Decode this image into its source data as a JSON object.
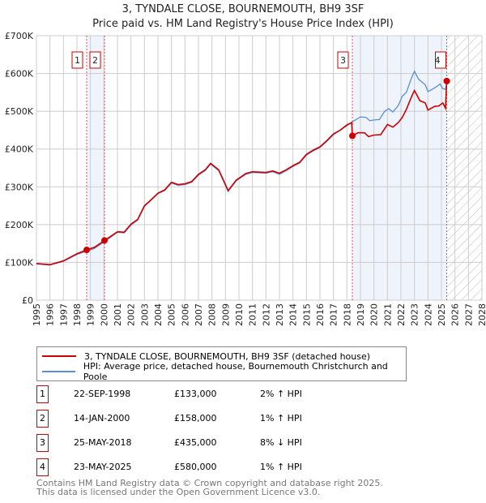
{
  "chart_data": {
    "type": "line",
    "title": "3, TYNDALE CLOSE, BOURNEMOUTH, BH9 3SF",
    "subtitle": "Price paid vs. HM Land Registry's House Price Index (HPI)",
    "xlim": [
      1995,
      2028
    ],
    "ylim": [
      0,
      700000
    ],
    "x_ticks": [
      "1995",
      "1996",
      "1997",
      "1998",
      "1999",
      "2000",
      "2001",
      "2002",
      "2003",
      "2004",
      "2005",
      "2006",
      "2007",
      "2008",
      "2009",
      "2010",
      "2011",
      "2012",
      "2013",
      "2014",
      "2015",
      "2016",
      "2017",
      "2018",
      "2019",
      "2020",
      "2021",
      "2022",
      "2023",
      "2024",
      "2025",
      "2026",
      "2027",
      "2028"
    ],
    "y_ticks": [
      {
        "v": 0,
        "label": "£0"
      },
      {
        "v": 100000,
        "label": "£100K"
      },
      {
        "v": 200000,
        "label": "£200K"
      },
      {
        "v": 300000,
        "label": "£300K"
      },
      {
        "v": 400000,
        "label": "£400K"
      },
      {
        "v": 500000,
        "label": "£500K"
      },
      {
        "v": 600000,
        "label": "£600K"
      },
      {
        "v": 700000,
        "label": "£700K"
      }
    ],
    "grid": true,
    "legend_position": "below",
    "series": [
      {
        "name": "3, TYNDALE CLOSE, BOURNEMOUTH, BH9 3SF (detached house)",
        "color": "#cc0000",
        "points": [
          [
            1995,
            97
          ],
          [
            1996,
            94
          ],
          [
            1997,
            104
          ],
          [
            1998,
            123
          ],
          [
            1998.72,
            133
          ],
          [
            1999.3,
            140
          ],
          [
            2000.04,
            158
          ],
          [
            2001,
            181
          ],
          [
            2001.5,
            180
          ],
          [
            2002,
            201
          ],
          [
            2002.5,
            214
          ],
          [
            2003,
            250
          ],
          [
            2003.5,
            266
          ],
          [
            2004,
            283
          ],
          [
            2004.5,
            292
          ],
          [
            2005,
            312
          ],
          [
            2005.5,
            306
          ],
          [
            2006,
            308
          ],
          [
            2006.5,
            314
          ],
          [
            2007,
            333
          ],
          [
            2007.5,
            345
          ],
          [
            2007.9,
            362
          ],
          [
            2008.5,
            345
          ],
          [
            2009.2,
            290
          ],
          [
            2009.8,
            318
          ],
          [
            2010.5,
            335
          ],
          [
            2011,
            340
          ],
          [
            2012,
            338
          ],
          [
            2012.5,
            342
          ],
          [
            2013,
            336
          ],
          [
            2013.5,
            345
          ],
          [
            2014,
            356
          ],
          [
            2014.5,
            365
          ],
          [
            2015,
            386
          ],
          [
            2015.5,
            397
          ],
          [
            2016,
            406
          ],
          [
            2016.5,
            422
          ],
          [
            2017,
            440
          ],
          [
            2017.5,
            450
          ],
          [
            2018,
            464
          ],
          [
            2018.35,
            470
          ],
          [
            2018.4,
            435
          ],
          [
            2018.8,
            443
          ],
          [
            2019.3,
            443
          ],
          [
            2019.6,
            433
          ],
          [
            2020,
            437
          ],
          [
            2020.5,
            438
          ],
          [
            2021,
            465
          ],
          [
            2021.4,
            458
          ],
          [
            2021.8,
            470
          ],
          [
            2022.1,
            484
          ],
          [
            2022.4,
            505
          ],
          [
            2022.8,
            540
          ],
          [
            2023,
            555
          ],
          [
            2023.4,
            528
          ],
          [
            2023.8,
            522
          ],
          [
            2024,
            503
          ],
          [
            2024.5,
            513
          ],
          [
            2024.8,
            514
          ],
          [
            2025.1,
            522
          ],
          [
            2025.3,
            508
          ],
          [
            2025.39,
            580
          ]
        ]
      },
      {
        "name": "HPI: Average price, detached house, Bournemouth Christchurch and Poole",
        "color": "#5b8fd4",
        "points": [
          [
            1995,
            96
          ],
          [
            1996,
            93
          ],
          [
            1997,
            103
          ],
          [
            1998,
            121
          ],
          [
            1998.72,
            130
          ],
          [
            1999.3,
            137
          ],
          [
            2000.04,
            155
          ],
          [
            2001,
            180
          ],
          [
            2001.5,
            178
          ],
          [
            2002,
            199
          ],
          [
            2002.5,
            212
          ],
          [
            2003,
            248
          ],
          [
            2003.5,
            265
          ],
          [
            2004,
            282
          ],
          [
            2004.5,
            290
          ],
          [
            2005,
            310
          ],
          [
            2005.5,
            304
          ],
          [
            2006,
            306
          ],
          [
            2006.5,
            312
          ],
          [
            2007,
            331
          ],
          [
            2007.5,
            343
          ],
          [
            2007.9,
            360
          ],
          [
            2008.5,
            343
          ],
          [
            2009.2,
            288
          ],
          [
            2009.8,
            316
          ],
          [
            2010.5,
            333
          ],
          [
            2011,
            338
          ],
          [
            2012,
            336
          ],
          [
            2012.5,
            340
          ],
          [
            2013,
            333
          ],
          [
            2013.5,
            343
          ],
          [
            2014,
            354
          ],
          [
            2014.5,
            363
          ],
          [
            2015,
            384
          ],
          [
            2015.5,
            395
          ],
          [
            2016,
            404
          ],
          [
            2016.5,
            420
          ],
          [
            2017,
            438
          ],
          [
            2017.5,
            450
          ],
          [
            2018,
            462
          ],
          [
            2018.4,
            472
          ],
          [
            2019,
            485
          ],
          [
            2019.4,
            484
          ],
          [
            2019.7,
            475
          ],
          [
            2020,
            477
          ],
          [
            2020.4,
            478
          ],
          [
            2020.8,
            500
          ],
          [
            2021.1,
            507
          ],
          [
            2021.4,
            498
          ],
          [
            2021.8,
            515
          ],
          [
            2022.1,
            540
          ],
          [
            2022.4,
            550
          ],
          [
            2022.8,
            590
          ],
          [
            2023,
            606
          ],
          [
            2023.3,
            585
          ],
          [
            2023.8,
            570
          ],
          [
            2024,
            552
          ],
          [
            2024.5,
            562
          ],
          [
            2024.9,
            572
          ],
          [
            2025.1,
            560
          ],
          [
            2025.3,
            558
          ],
          [
            2025.39,
            575
          ]
        ]
      }
    ],
    "value_unit": "thousand GBP",
    "shaded_ranges": [
      [
        1998.72,
        2000.04
      ],
      [
        2018.4,
        2025.39
      ]
    ],
    "hatched_range": [
      2025.39,
      2028
    ],
    "sales": [
      {
        "n": "1",
        "x": 1998.72,
        "y": 133,
        "date": "22-SEP-1998",
        "price": "£133,000",
        "hpi": "2% ↑ HPI"
      },
      {
        "n": "2",
        "x": 2000.04,
        "y": 158,
        "date": "14-JAN-2000",
        "price": "£158,000",
        "hpi": "1% ↑ HPI"
      },
      {
        "n": "3",
        "x": 2018.4,
        "y": 435,
        "date": "25-MAY-2018",
        "price": "£435,000",
        "hpi": "8% ↓ HPI"
      },
      {
        "n": "4",
        "x": 2025.39,
        "y": 580,
        "date": "23-MAY-2025",
        "price": "£580,000",
        "hpi": "1% ↑ HPI"
      }
    ]
  },
  "footer": {
    "line1": "Contains HM Land Registry data © Crown copyright and database right 2025.",
    "line2": "This data is licensed under the Open Government Licence v3.0."
  }
}
